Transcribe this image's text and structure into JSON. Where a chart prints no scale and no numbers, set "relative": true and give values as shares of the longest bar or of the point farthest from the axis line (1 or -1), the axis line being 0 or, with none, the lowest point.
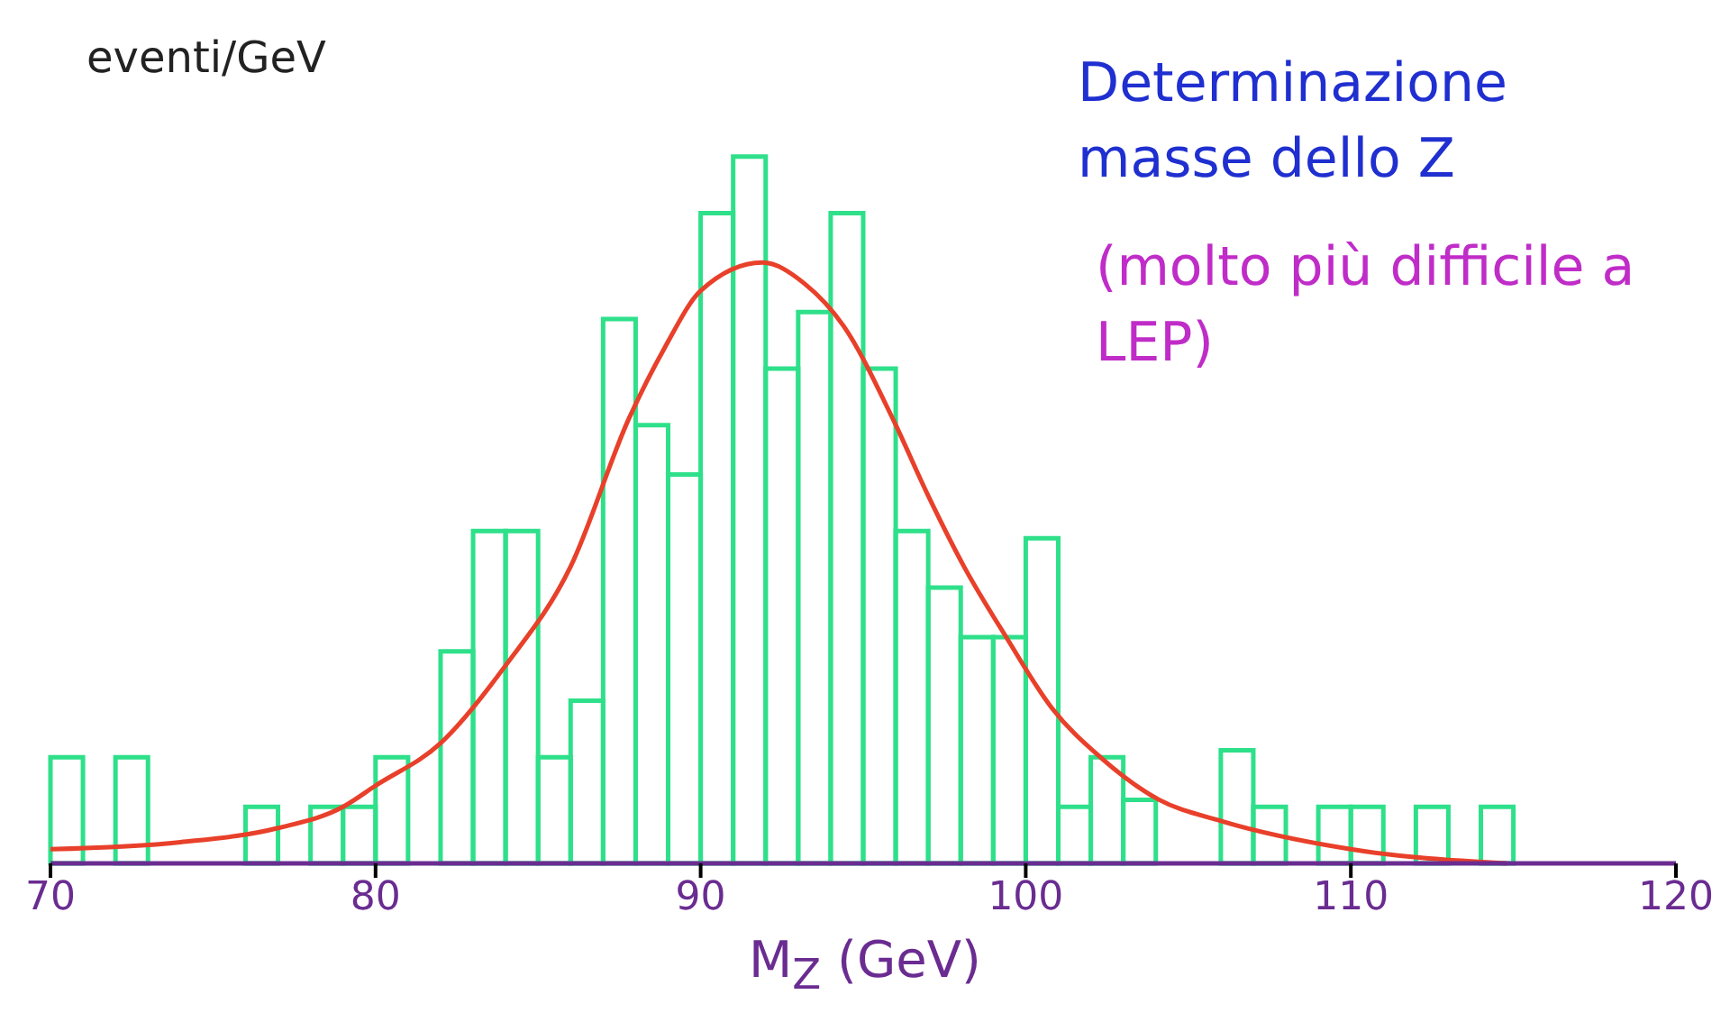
{
  "chart_data": {
    "type": "histogram",
    "relative": true,
    "ylabel": "eventi/GeV",
    "xlabel": "M$_{Z}$ (GeV)",
    "annotations": [
      "Determinazione masse dello Z",
      "(molto più difficile a LEP)"
    ],
    "xlim": [
      70,
      120
    ],
    "xticks": [
      70,
      80,
      90,
      100,
      110,
      120
    ],
    "color": "#2ee08a",
    "bins": [
      70,
      71,
      72,
      73,
      74,
      75,
      76,
      77,
      78,
      79,
      80,
      81,
      82,
      83,
      84,
      85,
      86,
      87,
      88,
      89,
      90,
      91,
      92,
      93,
      94,
      95,
      96,
      97,
      98,
      99,
      100,
      101,
      102,
      103,
      104,
      105,
      106,
      107,
      108,
      109,
      110,
      111,
      112,
      113,
      114,
      115
    ],
    "values": [
      0.15,
      0,
      0.15,
      0,
      0,
      0,
      0.08,
      0,
      0.08,
      0.08,
      0.15,
      0,
      0.3,
      0.47,
      0.47,
      0.15,
      0.23,
      0.77,
      0.62,
      0.55,
      0.92,
      1.0,
      0.7,
      0.78,
      0.92,
      0.7,
      0.47,
      0.39,
      0.32,
      0.32,
      0.46,
      0.08,
      0.15,
      0.09,
      0,
      0,
      0.16,
      0.08,
      0,
      0.08,
      0.08,
      0,
      0.08,
      0,
      0.08
    ],
    "series": [
      {
        "type": "line",
        "color": "#e8402a",
        "x": [
          70,
          74,
          77,
          79,
          80,
          82,
          84,
          86,
          87.8,
          88.9,
          90,
          91.9,
          93.2,
          94.4,
          95.9,
          97,
          98.1,
          99.4,
          100.8,
          102.3,
          104.1,
          106,
          110,
          114.8
        ],
        "values": [
          0.02,
          0.03,
          0.05,
          0.08,
          0.11,
          0.17,
          0.28,
          0.42,
          0.63,
          0.73,
          0.81,
          0.85,
          0.82,
          0.76,
          0.63,
          0.52,
          0.42,
          0.32,
          0.22,
          0.15,
          0.09,
          0.06,
          0.02,
          0
        ]
      }
    ]
  }
}
